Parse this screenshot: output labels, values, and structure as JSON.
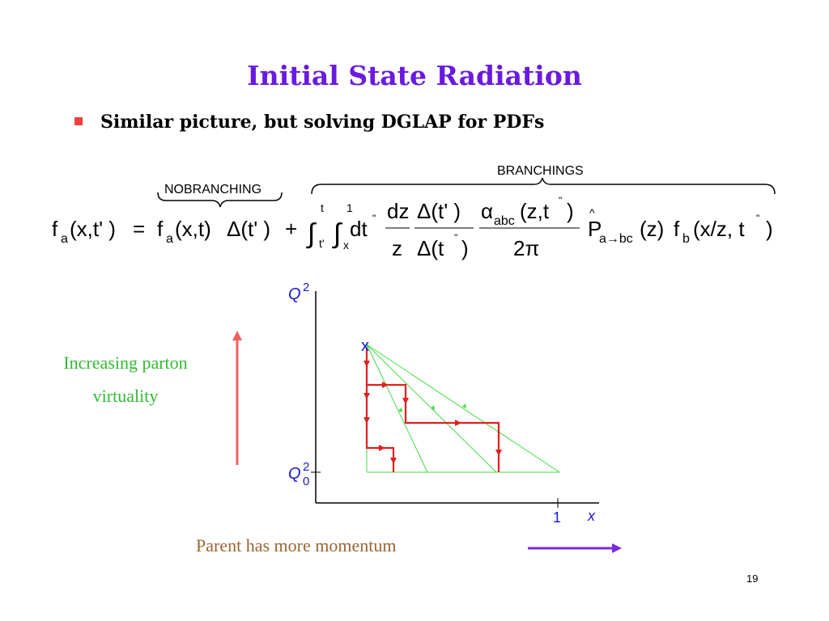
{
  "slide": {
    "title": "Initial State Radiation",
    "bullet": "Similar picture, but solving DGLAP for PDFs",
    "page_number": "19"
  },
  "equation": {
    "nobranching_label": "NOBRANCHING",
    "branchings_label": "BRANCHINGS",
    "text": "f_a(x,t') = f_a(x,t) Δ(t') + ∫_{t'}^{t} ∫_x^1 dt'' dz/z Δ(t')/Δ(t'') α_abc(z,t'')/2π P̂_{a→bc}(z) f_b(x/z,t'')"
  },
  "diagram": {
    "y_axis_label": "Q",
    "y_axis_sup": "2",
    "y0_label": "Q",
    "y0_sub": "0",
    "y0_sup": "2",
    "x_tick_label": "1",
    "x_axis_label": "x",
    "start_marker": "x"
  },
  "annotations": {
    "left_line1": "Increasing parton",
    "left_line2": "virtuality",
    "bottom": "Parent has more momentum"
  },
  "colors": {
    "title": "#6a1ae0",
    "bullet": "#f04040",
    "red_path": "#e02020",
    "green_lines": "#44dd44",
    "blue_labels": "#1a1acc",
    "left_arrow": "#f06060",
    "bottom_arrow": "#7a2ae0"
  }
}
